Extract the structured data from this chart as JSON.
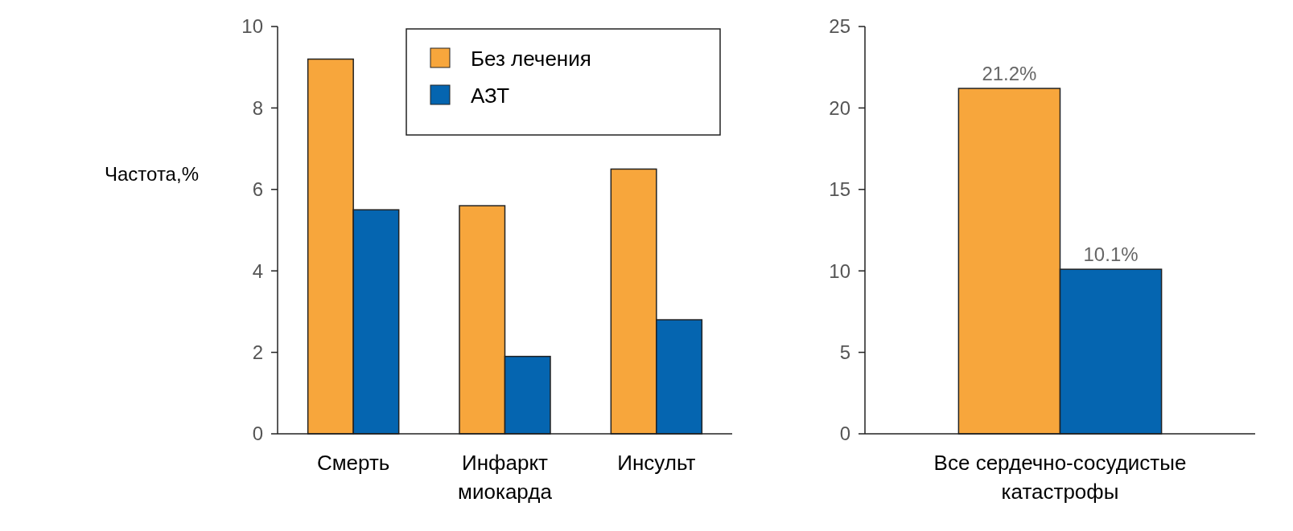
{
  "chart_data": [
    {
      "type": "bar",
      "ylabel": "Частота,%",
      "categories": [
        "Смерть",
        "Инфаркт миокарда",
        "Инсульт"
      ],
      "series": [
        {
          "name": "Без лечения",
          "color": "#f7a63c",
          "values": [
            9.2,
            5.6,
            6.5
          ]
        },
        {
          "name": "АЗТ",
          "color": "#0565b0",
          "values": [
            5.5,
            1.9,
            2.8
          ]
        }
      ],
      "ylim": [
        0,
        10
      ],
      "yticks": [
        0,
        2,
        4,
        6,
        8,
        10
      ],
      "legend": "top right"
    },
    {
      "type": "bar",
      "categories": [
        "Все сердечно-сосудистые катастрофы"
      ],
      "series": [
        {
          "color": "#f7a63c",
          "values": [
            21.2
          ],
          "value_labels": [
            "21.2%"
          ]
        },
        {
          "color": "#0565b0",
          "values": [
            10.1
          ],
          "value_labels": [
            "10.1%"
          ]
        }
      ],
      "ylim": [
        0,
        25
      ],
      "yticks": [
        0,
        5,
        10,
        15,
        20,
        25
      ]
    }
  ]
}
